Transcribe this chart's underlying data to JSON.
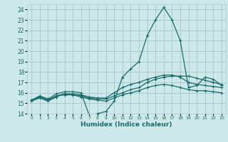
{
  "title": "",
  "xlabel": "Humidex (Indice chaleur)",
  "ylabel": "",
  "bg_color": "#cce8e8",
  "grid_color": "#aacccc",
  "line_color": "#1a6b6b",
  "xlim": [
    -0.5,
    23.5
  ],
  "ylim": [
    14,
    24.5
  ],
  "yticks": [
    14,
    15,
    16,
    17,
    18,
    19,
    20,
    21,
    22,
    23,
    24
  ],
  "xticks": [
    0,
    1,
    2,
    3,
    4,
    5,
    6,
    7,
    8,
    9,
    10,
    11,
    12,
    13,
    14,
    15,
    16,
    17,
    18,
    19,
    20,
    21,
    22,
    23
  ],
  "series": [
    {
      "x": [
        0,
        1,
        2,
        3,
        4,
        5,
        6,
        7,
        8,
        9,
        10,
        11,
        12,
        13,
        14,
        15,
        16,
        17,
        18,
        19,
        20,
        21,
        22,
        23
      ],
      "y": [
        15.3,
        15.7,
        15.4,
        15.9,
        16.1,
        16.1,
        16.0,
        13.8,
        14.0,
        14.2,
        15.2,
        17.5,
        18.3,
        19.0,
        21.5,
        23.0,
        24.2,
        23.0,
        21.0,
        16.5,
        16.7,
        17.5,
        17.3,
        16.7
      ]
    },
    {
      "x": [
        0,
        1,
        2,
        3,
        4,
        5,
        6,
        7,
        8,
        9,
        10,
        11,
        12,
        13,
        14,
        15,
        16,
        17,
        18,
        19,
        20,
        21,
        22,
        23
      ],
      "y": [
        15.3,
        15.6,
        15.3,
        15.7,
        15.8,
        15.8,
        15.7,
        15.5,
        15.4,
        15.4,
        15.7,
        16.0,
        16.3,
        16.5,
        17.0,
        17.3,
        17.5,
        17.6,
        17.6,
        17.6,
        17.4,
        17.2,
        17.0,
        16.8
      ]
    },
    {
      "x": [
        0,
        1,
        2,
        3,
        4,
        5,
        6,
        7,
        8,
        9,
        10,
        11,
        12,
        13,
        14,
        15,
        16,
        17,
        18,
        19,
        20,
        21,
        22,
        23
      ],
      "y": [
        15.3,
        15.6,
        15.3,
        15.7,
        15.9,
        15.9,
        15.8,
        15.6,
        15.5,
        15.5,
        16.0,
        16.5,
        16.8,
        17.0,
        17.3,
        17.5,
        17.7,
        17.7,
        17.5,
        17.0,
        16.8,
        16.7,
        16.6,
        16.5
      ]
    },
    {
      "x": [
        0,
        1,
        2,
        3,
        4,
        5,
        6,
        7,
        8,
        9,
        10,
        11,
        12,
        13,
        14,
        15,
        16,
        17,
        18,
        19,
        20,
        21,
        22,
        23
      ],
      "y": [
        15.2,
        15.5,
        15.2,
        15.6,
        15.9,
        15.8,
        15.6,
        15.4,
        15.3,
        15.2,
        15.5,
        15.8,
        16.0,
        16.2,
        16.5,
        16.7,
        16.8,
        16.7,
        16.5,
        16.3,
        16.2,
        16.2,
        16.1,
        16.0
      ]
    }
  ]
}
